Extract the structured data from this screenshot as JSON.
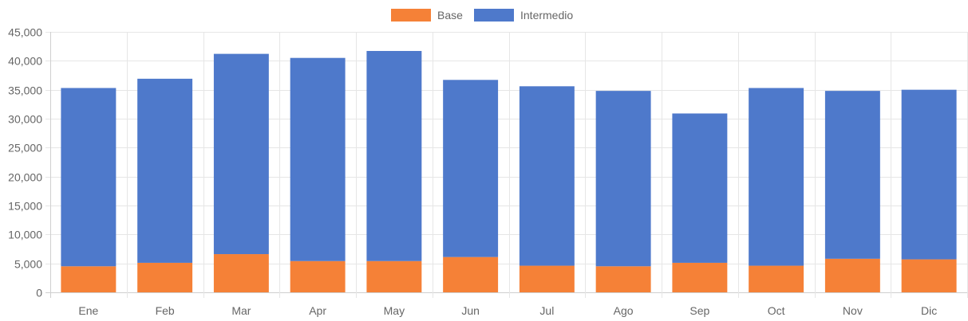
{
  "chart_data": {
    "type": "bar",
    "stacked": true,
    "categories": [
      "Ene",
      "Feb",
      "Mar",
      "Apr",
      "May",
      "Jun",
      "Jul",
      "Ago",
      "Sep",
      "Oct",
      "Nov",
      "Dic"
    ],
    "series": [
      {
        "name": "Base",
        "color": "#F58137",
        "values": [
          4500,
          5100,
          6600,
          5400,
          5400,
          6100,
          4600,
          4500,
          5100,
          4600,
          5800,
          5700
        ]
      },
      {
        "name": "Intermedio",
        "color": "#4E79CB",
        "values": [
          30800,
          31800,
          34600,
          35100,
          36300,
          30600,
          31000,
          30300,
          25800,
          30700,
          29000,
          29300
        ]
      }
    ],
    "ylim": [
      0,
      45000
    ],
    "yticks": [
      "0",
      "5,000",
      "10,000",
      "15,000",
      "20,000",
      "25,000",
      "30,000",
      "35,000",
      "40,000",
      "45,000"
    ],
    "legend_position": "top-center",
    "grid": true,
    "title": "",
    "xlabel": "",
    "ylabel": ""
  }
}
